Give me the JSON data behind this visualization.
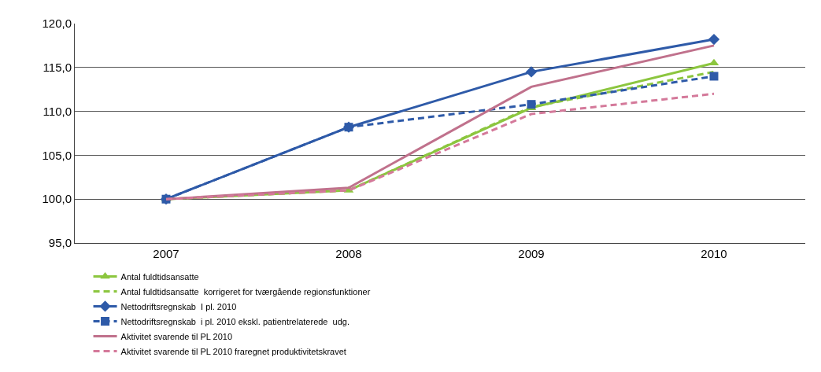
{
  "chart_data": {
    "type": "line",
    "categories": [
      "2007",
      "2008",
      "2009",
      "2010"
    ],
    "series": [
      {
        "name": "Antal fuldtidsansatte",
        "color": "#8cc63f",
        "line_style": "solid",
        "marker": "triangle",
        "values": [
          100,
          101.0,
          110.4,
          115.5
        ]
      },
      {
        "name": "Antal fuldtidsansatte  korrigeret for tværgående regionsfunktioner",
        "color": "#8cc63f",
        "line_style": "dashed",
        "marker": "none",
        "values": [
          100,
          101.0,
          110.5,
          114.5
        ]
      },
      {
        "name": "Nettodriftsregnskab  I pl. 2010",
        "color": "#2e5aa8",
        "line_style": "solid",
        "marker": "diamond",
        "values": [
          100,
          108.2,
          114.5,
          118.2
        ]
      },
      {
        "name": "Nettodriftsregnskab  i pl. 2010 ekskl. patientrelaterede  udg.",
        "color": "#2e5aa8",
        "line_style": "dashed",
        "marker": "square",
        "values": [
          100,
          108.2,
          110.8,
          114.0
        ]
      },
      {
        "name": "Aktivitet svarende til PL 2010",
        "color": "#c0718c",
        "line_style": "solid",
        "marker": "none",
        "values": [
          100,
          101.3,
          112.8,
          117.5
        ]
      },
      {
        "name": "Aktivitet svarende til PL 2010 fraregnet produktivitetskravet",
        "color": "#d4799a",
        "line_style": "dashed",
        "marker": "none",
        "values": [
          100,
          101.0,
          109.7,
          112.0
        ]
      }
    ],
    "ylim": [
      95,
      120
    ],
    "yticks": [
      {
        "value": 95,
        "label": "95,0"
      },
      {
        "value": 100,
        "label": "100,0"
      },
      {
        "value": 105,
        "label": "105,0"
      },
      {
        "value": 110,
        "label": "110,0"
      },
      {
        "value": 115,
        "label": "115,0"
      },
      {
        "value": 120,
        "label": "120,0"
      }
    ],
    "grid": "y",
    "legend": "bottom"
  }
}
